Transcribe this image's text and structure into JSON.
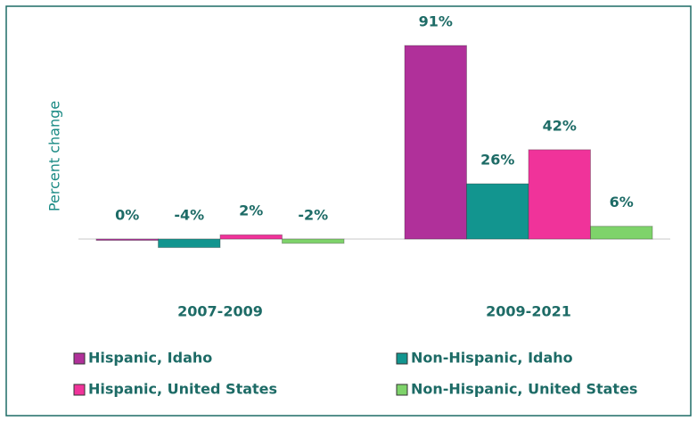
{
  "chart_data": {
    "type": "bar",
    "y_label": "Percent change",
    "categories": [
      "2007-2009",
      "2009-2021"
    ],
    "series": [
      {
        "name": "Hispanic, Idaho",
        "color": "#b0309a",
        "values": [
          0,
          91
        ],
        "value_labels": [
          "0%",
          "91%"
        ]
      },
      {
        "name": "Non-Hispanic, Idaho",
        "color": "#12958f",
        "values": [
          -4,
          26
        ],
        "value_labels": [
          "-4%",
          "26%"
        ]
      },
      {
        "name": "Hispanic, United States",
        "color": "#f0339a",
        "values": [
          2,
          42
        ],
        "value_labels": [
          "2%",
          "42%"
        ]
      },
      {
        "name": "Non-Hispanic, United States",
        "color": "#7ed36a",
        "values": [
          -2,
          6
        ],
        "value_labels": [
          "-2%",
          "6%"
        ]
      }
    ]
  }
}
